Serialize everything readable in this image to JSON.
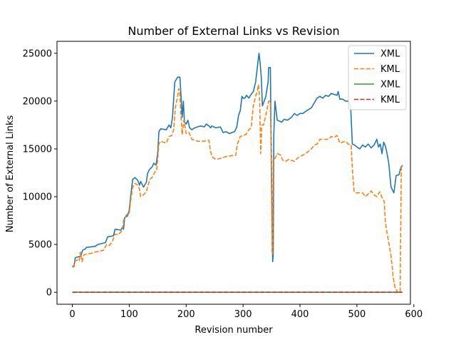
{
  "chart_data": {
    "type": "line",
    "title": "Number of External Links vs Revision",
    "xlabel": "Revision number",
    "ylabel": "Number of External Links",
    "xlim": [
      -27,
      594
    ],
    "ylim": [
      -1250,
      26250
    ],
    "xticks": [
      0,
      100,
      200,
      300,
      400,
      500,
      600
    ],
    "yticks": [
      0,
      5000,
      10000,
      15000,
      20000,
      25000
    ],
    "grid": false,
    "legend_position": "top-right",
    "series": [
      {
        "name": "XML",
        "color": "#1f77b4",
        "style": "solid",
        "points": [
          [
            0,
            2700
          ],
          [
            3,
            2800
          ],
          [
            5,
            3600
          ],
          [
            15,
            3800
          ],
          [
            18,
            4400
          ],
          [
            22,
            4500
          ],
          [
            25,
            4700
          ],
          [
            40,
            4800
          ],
          [
            45,
            5000
          ],
          [
            58,
            5200
          ],
          [
            62,
            5800
          ],
          [
            72,
            5900
          ],
          [
            75,
            6600
          ],
          [
            85,
            6500
          ],
          [
            88,
            6800
          ],
          [
            90,
            6600
          ],
          [
            92,
            7800
          ],
          [
            97,
            8000
          ],
          [
            100,
            8600
          ],
          [
            103,
            10300
          ],
          [
            106,
            11800
          ],
          [
            110,
            12000
          ],
          [
            115,
            11700
          ],
          [
            118,
            11200
          ],
          [
            120,
            11600
          ],
          [
            125,
            11000
          ],
          [
            130,
            11500
          ],
          [
            132,
            12400
          ],
          [
            135,
            12800
          ],
          [
            140,
            13100
          ],
          [
            143,
            13500
          ],
          [
            147,
            13300
          ],
          [
            150,
            14600
          ],
          [
            152,
            16800
          ],
          [
            155,
            17100
          ],
          [
            165,
            17000
          ],
          [
            170,
            17500
          ],
          [
            173,
            17200
          ],
          [
            176,
            18300
          ],
          [
            180,
            22000
          ],
          [
            185,
            22500
          ],
          [
            189,
            22500
          ],
          [
            191,
            20500
          ],
          [
            193,
            18300
          ],
          [
            195,
            20000
          ],
          [
            197,
            17800
          ],
          [
            200,
            17600
          ],
          [
            203,
            18000
          ],
          [
            206,
            17200
          ],
          [
            210,
            17000
          ],
          [
            215,
            17200
          ],
          [
            225,
            17400
          ],
          [
            232,
            17300
          ],
          [
            235,
            17600
          ],
          [
            240,
            17400
          ],
          [
            243,
            17200
          ],
          [
            245,
            17400
          ],
          [
            252,
            17200
          ],
          [
            260,
            17300
          ],
          [
            265,
            16700
          ],
          [
            270,
            16800
          ],
          [
            276,
            16600
          ],
          [
            280,
            16700
          ],
          [
            285,
            16800
          ],
          [
            289,
            17300
          ],
          [
            292,
            18500
          ],
          [
            295,
            19000
          ],
          [
            298,
            20500
          ],
          [
            300,
            20300
          ],
          [
            303,
            20300
          ],
          [
            306,
            20600
          ],
          [
            310,
            20300
          ],
          [
            314,
            20700
          ],
          [
            318,
            21000
          ],
          [
            322,
            22000
          ],
          [
            325,
            23500
          ],
          [
            328,
            25000
          ],
          [
            330,
            24000
          ],
          [
            332,
            22500
          ],
          [
            334,
            19500
          ],
          [
            336,
            19800
          ],
          [
            340,
            20500
          ],
          [
            344,
            22000
          ],
          [
            345,
            23500
          ],
          [
            348,
            23500
          ],
          [
            349,
            17000
          ],
          [
            352,
            3200
          ],
          [
            353,
            4000
          ],
          [
            354,
            16500
          ],
          [
            356,
            20000
          ],
          [
            360,
            18000
          ],
          [
            364,
            17900
          ],
          [
            368,
            17800
          ],
          [
            372,
            18100
          ],
          [
            378,
            18000
          ],
          [
            385,
            18300
          ],
          [
            390,
            18700
          ],
          [
            395,
            18500
          ],
          [
            400,
            18700
          ],
          [
            405,
            18700
          ],
          [
            412,
            19000
          ],
          [
            420,
            19300
          ],
          [
            425,
            19800
          ],
          [
            430,
            20300
          ],
          [
            435,
            20500
          ],
          [
            440,
            20300
          ],
          [
            445,
            20600
          ],
          [
            450,
            20500
          ],
          [
            455,
            20800
          ],
          [
            460,
            20700
          ],
          [
            465,
            20600
          ],
          [
            467,
            21000
          ],
          [
            470,
            20200
          ],
          [
            475,
            20200
          ],
          [
            480,
            20000
          ],
          [
            485,
            20000
          ],
          [
            489,
            19500
          ],
          [
            492,
            15500
          ],
          [
            496,
            15400
          ],
          [
            500,
            15200
          ],
          [
            505,
            15000
          ],
          [
            510,
            15400
          ],
          [
            515,
            15200
          ],
          [
            520,
            15500
          ],
          [
            525,
            15100
          ],
          [
            530,
            15400
          ],
          [
            535,
            16000
          ],
          [
            538,
            15200
          ],
          [
            541,
            15500
          ],
          [
            544,
            14500
          ],
          [
            547,
            15700
          ],
          [
            550,
            15300
          ],
          [
            553,
            14500
          ],
          [
            556,
            13500
          ],
          [
            560,
            11000
          ],
          [
            565,
            10400
          ],
          [
            569,
            12200
          ],
          [
            574,
            12300
          ],
          [
            577,
            13000
          ],
          [
            580,
            13300
          ]
        ]
      },
      {
        "name": "KML",
        "color": "#ff7f0e",
        "style": "dashed",
        "points": [
          [
            0,
            2600
          ],
          [
            3,
            2700
          ],
          [
            5,
            3300
          ],
          [
            10,
            3400
          ],
          [
            12,
            3300
          ],
          [
            14,
            4200
          ],
          [
            17,
            3200
          ],
          [
            20,
            3900
          ],
          [
            25,
            4000
          ],
          [
            35,
            4100
          ],
          [
            40,
            4200
          ],
          [
            55,
            4400
          ],
          [
            60,
            5000
          ],
          [
            65,
            4900
          ],
          [
            70,
            5300
          ],
          [
            75,
            6100
          ],
          [
            80,
            6000
          ],
          [
            85,
            6300
          ],
          [
            88,
            6500
          ],
          [
            90,
            7500
          ],
          [
            95,
            8100
          ],
          [
            100,
            8300
          ],
          [
            103,
            9800
          ],
          [
            106,
            11000
          ],
          [
            110,
            11400
          ],
          [
            115,
            11200
          ],
          [
            118,
            10800
          ],
          [
            120,
            10000
          ],
          [
            125,
            10200
          ],
          [
            130,
            10500
          ],
          [
            133,
            11200
          ],
          [
            136,
            11800
          ],
          [
            140,
            12000
          ],
          [
            145,
            12600
          ],
          [
            148,
            12700
          ],
          [
            150,
            14000
          ],
          [
            152,
            15500
          ],
          [
            155,
            15800
          ],
          [
            165,
            15600
          ],
          [
            170,
            16300
          ],
          [
            175,
            16400
          ],
          [
            178,
            17000
          ],
          [
            181,
            19300
          ],
          [
            185,
            20500
          ],
          [
            187,
            21300
          ],
          [
            189,
            20700
          ],
          [
            191,
            18300
          ],
          [
            193,
            16500
          ],
          [
            196,
            18000
          ],
          [
            200,
            16600
          ],
          [
            205,
            16700
          ],
          [
            210,
            16000
          ],
          [
            220,
            15800
          ],
          [
            230,
            15800
          ],
          [
            240,
            15900
          ],
          [
            242,
            15000
          ],
          [
            245,
            14200
          ],
          [
            252,
            13900
          ],
          [
            260,
            14000
          ],
          [
            270,
            14200
          ],
          [
            280,
            14300
          ],
          [
            287,
            14300
          ],
          [
            290,
            15500
          ],
          [
            295,
            16300
          ],
          [
            300,
            16400
          ],
          [
            305,
            16500
          ],
          [
            310,
            17000
          ],
          [
            314,
            17200
          ],
          [
            318,
            19500
          ],
          [
            322,
            20500
          ],
          [
            325,
            21000
          ],
          [
            327,
            21700
          ],
          [
            329,
            20500
          ],
          [
            331,
            14500
          ],
          [
            333,
            17500
          ],
          [
            336,
            17500
          ],
          [
            340,
            18500
          ],
          [
            345,
            20000
          ],
          [
            348,
            20000
          ],
          [
            349,
            16500
          ],
          [
            351,
            4000
          ],
          [
            352,
            4000
          ],
          [
            353,
            14000
          ],
          [
            356,
            14000
          ],
          [
            360,
            14500
          ],
          [
            365,
            14400
          ],
          [
            370,
            13800
          ],
          [
            375,
            13700
          ],
          [
            380,
            13900
          ],
          [
            390,
            13700
          ],
          [
            395,
            14000
          ],
          [
            400,
            14200
          ],
          [
            410,
            14500
          ],
          [
            420,
            15000
          ],
          [
            425,
            15400
          ],
          [
            430,
            15500
          ],
          [
            435,
            16000
          ],
          [
            445,
            16000
          ],
          [
            450,
            16000
          ],
          [
            455,
            16300
          ],
          [
            460,
            16200
          ],
          [
            465,
            16400
          ],
          [
            470,
            15600
          ],
          [
            480,
            15800
          ],
          [
            485,
            15500
          ],
          [
            490,
            15400
          ],
          [
            492,
            13000
          ],
          [
            495,
            10500
          ],
          [
            500,
            10400
          ],
          [
            510,
            10400
          ],
          [
            515,
            10000
          ],
          [
            520,
            10300
          ],
          [
            525,
            10600
          ],
          [
            530,
            10200
          ],
          [
            535,
            10000
          ],
          [
            540,
            10500
          ],
          [
            545,
            9800
          ],
          [
            548,
            9500
          ],
          [
            550,
            7300
          ],
          [
            555,
            5500
          ],
          [
            560,
            3800
          ],
          [
            564,
            1500
          ],
          [
            567,
            500
          ],
          [
            570,
            200
          ],
          [
            572,
            0
          ],
          [
            576,
            0
          ],
          [
            578,
            13000
          ],
          [
            580,
            13300
          ]
        ]
      },
      {
        "name": "XML",
        "color": "#2ca02c",
        "style": "solid",
        "points": [
          [
            0,
            0
          ],
          [
            580,
            0
          ]
        ]
      },
      {
        "name": "KML",
        "color": "#d62728",
        "style": "dashed",
        "points": [
          [
            0,
            0
          ],
          [
            580,
            0
          ]
        ]
      }
    ]
  }
}
